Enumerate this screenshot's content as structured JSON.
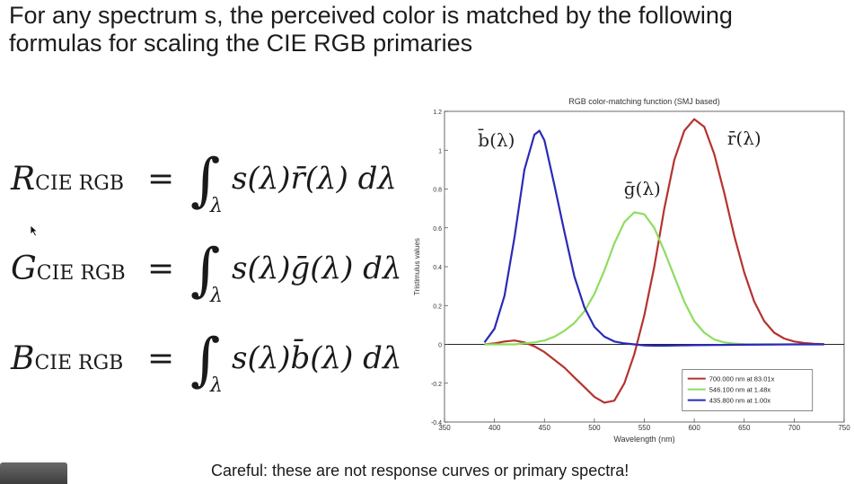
{
  "slide": {
    "title_line1": "For any spectrum s, the perceived color is matched by the following",
    "title_line2": "formulas for scaling the CIE RGB primaries",
    "caption": "Careful: these are not response curves or primary spectra!"
  },
  "equations": [
    {
      "lhs": "R",
      "sub": "CIE RGB",
      "equals": "=",
      "integral": "∫",
      "lower": "λ",
      "integrand": "s(λ)r̄(λ) dλ"
    },
    {
      "lhs": "G",
      "sub": "CIE RGB",
      "equals": "=",
      "integral": "∫",
      "lower": "λ",
      "integrand": "s(λ)ḡ(λ) dλ"
    },
    {
      "lhs": "B",
      "sub": "CIE RGB",
      "equals": "=",
      "integral": "∫",
      "lower": "λ",
      "integrand": "s(λ)b̄(λ) dλ"
    }
  ],
  "chart_data": {
    "type": "line",
    "title": "RGB color-matching function (SMJ based)",
    "xlabel": "Wavelength (nm)",
    "ylabel": "Tristimulus values",
    "xlim": [
      350,
      750
    ],
    "ylim": [
      -0.4,
      1.2
    ],
    "xticks": [
      350,
      400,
      450,
      500,
      550,
      600,
      650,
      700,
      750
    ],
    "yticks": [
      -0.4,
      -0.2,
      0,
      0.2,
      0.4,
      0.6,
      0.8,
      1,
      1.2
    ],
    "yticklabels": [
      "-0.4",
      "-0.2",
      "0",
      "0.2",
      "0.4",
      "0.6",
      "0.8",
      "1",
      "1.2"
    ],
    "legend_position": "bottom-right",
    "series": [
      {
        "name": "700.000 nm at 83.01x",
        "label": "r̄(λ)",
        "color": "#b5332e",
        "x": [
          390,
          400,
          410,
          420,
          430,
          440,
          450,
          460,
          470,
          480,
          490,
          500,
          510,
          520,
          530,
          540,
          550,
          560,
          570,
          580,
          590,
          600,
          610,
          620,
          630,
          640,
          650,
          660,
          670,
          680,
          690,
          700,
          710,
          720,
          730
        ],
        "y": [
          0.0,
          0.005,
          0.015,
          0.02,
          0.01,
          -0.01,
          -0.04,
          -0.08,
          -0.12,
          -0.17,
          -0.22,
          -0.27,
          -0.3,
          -0.29,
          -0.2,
          -0.05,
          0.15,
          0.4,
          0.7,
          0.95,
          1.1,
          1.16,
          1.12,
          0.98,
          0.78,
          0.56,
          0.37,
          0.22,
          0.12,
          0.06,
          0.03,
          0.015,
          0.007,
          0.003,
          0.001
        ]
      },
      {
        "name": "546.100 nm at 1.48x",
        "label": "ḡ(λ)",
        "color": "#8fdc62",
        "x": [
          390,
          400,
          410,
          420,
          430,
          440,
          450,
          460,
          470,
          480,
          490,
          500,
          510,
          520,
          530,
          540,
          550,
          560,
          570,
          580,
          590,
          600,
          610,
          620,
          630,
          640,
          650,
          660,
          670,
          680
        ],
        "y": [
          0.0,
          0.0,
          0.0,
          0.0,
          0.005,
          0.01,
          0.02,
          0.04,
          0.07,
          0.11,
          0.17,
          0.26,
          0.38,
          0.52,
          0.63,
          0.68,
          0.67,
          0.6,
          0.48,
          0.35,
          0.22,
          0.12,
          0.06,
          0.025,
          0.01,
          0.004,
          0.001,
          0.0,
          0.0,
          0.0
        ]
      },
      {
        "name": "435.800 nm at 1.00x",
        "label": "b̄(λ)",
        "color": "#2a2ab8",
        "x": [
          390,
          400,
          410,
          420,
          430,
          440,
          445,
          450,
          460,
          470,
          480,
          490,
          500,
          510,
          520,
          530,
          540,
          550,
          560,
          570,
          580,
          600,
          650,
          700,
          730
        ],
        "y": [
          0.01,
          0.08,
          0.25,
          0.55,
          0.9,
          1.08,
          1.1,
          1.05,
          0.82,
          0.58,
          0.35,
          0.19,
          0.09,
          0.04,
          0.015,
          0.005,
          0.0,
          -0.005,
          -0.007,
          -0.007,
          -0.006,
          -0.004,
          -0.002,
          0.0,
          0.0
        ]
      }
    ]
  }
}
